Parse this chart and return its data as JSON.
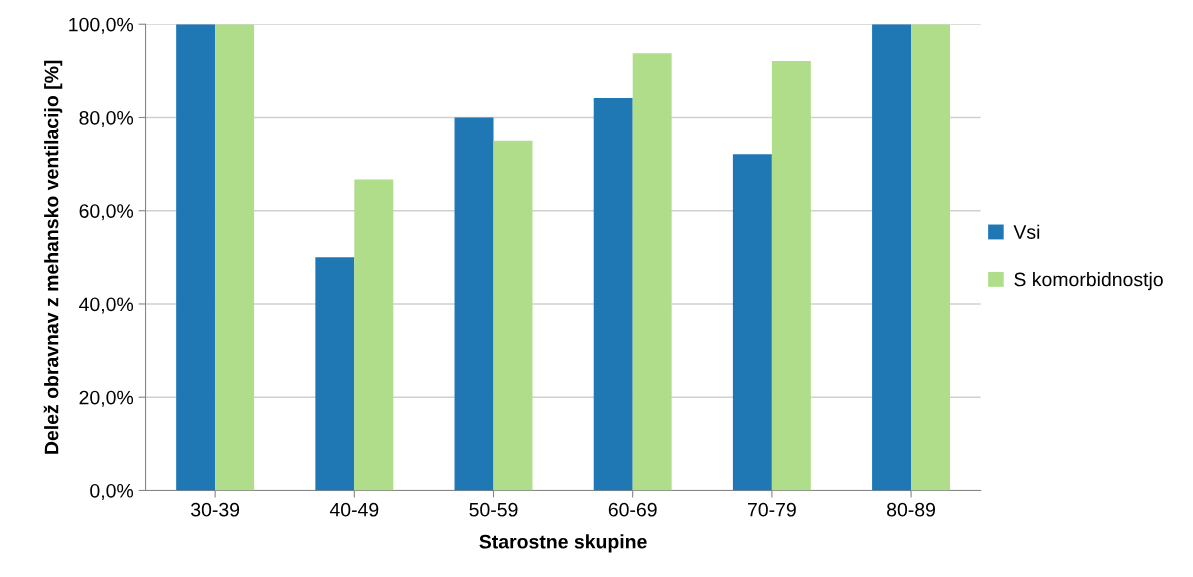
{
  "chart_data": {
    "type": "bar",
    "xlabel": "Starostne skupine",
    "ylabel": "Delež obravnav z mehansko ventilacijo [%]",
    "categories": [
      "30-39",
      "40-49",
      "50-59",
      "60-69",
      "70-79",
      "80-89"
    ],
    "series": [
      {
        "name": "Vsi",
        "color": "#1f77b4",
        "values": [
          100,
          50,
          80,
          84.2,
          72.1,
          100
        ]
      },
      {
        "name": "S komorbidnostjo",
        "color": "#b0dd8a",
        "values": [
          100,
          66.7,
          75,
          93.8,
          92.1,
          100
        ]
      }
    ],
    "ylim": [
      0,
      100
    ],
    "yticks": [
      {
        "value": 0,
        "label": "0,0%"
      },
      {
        "value": 20,
        "label": "20,0%"
      },
      {
        "value": 40,
        "label": "40,0%"
      },
      {
        "value": 60,
        "label": "60,0%"
      },
      {
        "value": 80,
        "label": "80,0%"
      },
      {
        "value": 100,
        "label": "100,0%"
      }
    ],
    "grid": "y",
    "legend": "right"
  }
}
